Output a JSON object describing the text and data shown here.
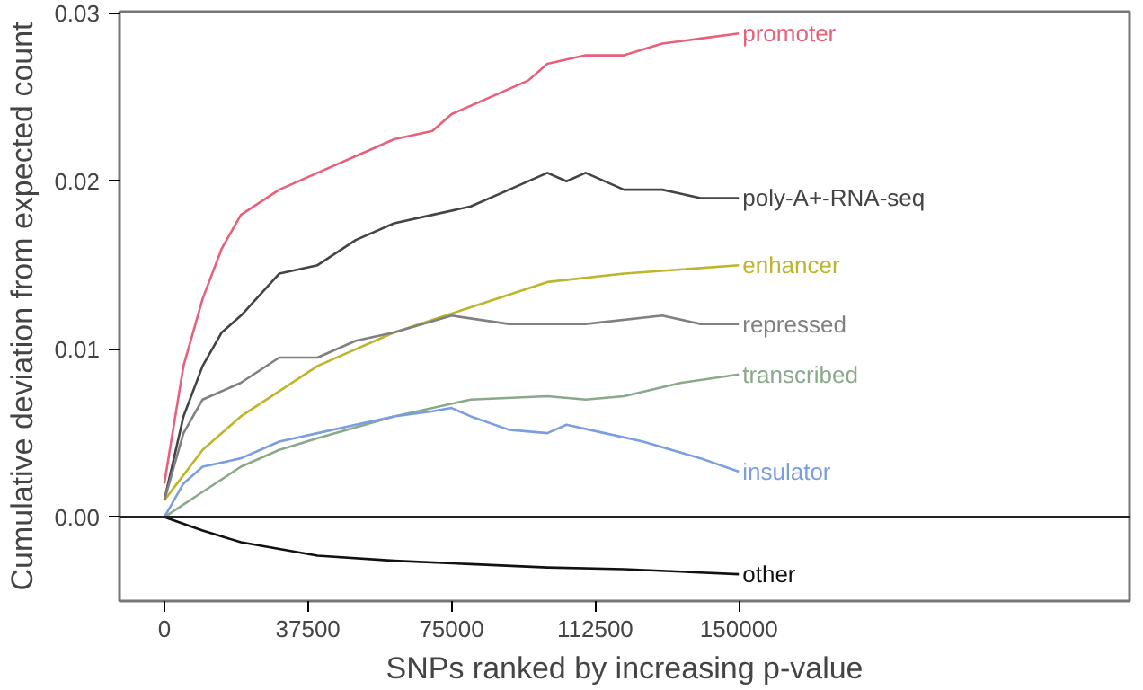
{
  "chart_data": {
    "type": "line",
    "xlabel": "SNPs ranked by increasing p-value",
    "ylabel": "Cumulative deviation from expected count",
    "xlim": [
      -11700,
      252000
    ],
    "ylim": [
      -0.005,
      0.0301
    ],
    "xticks": [
      0,
      37500,
      75000,
      112500,
      150000
    ],
    "yticks": [
      {
        "value": 0,
        "label": "0.00"
      },
      {
        "value": 0.01,
        "label": "0.01"
      },
      {
        "value": 0.02,
        "label": "0.02"
      },
      {
        "value": 0.03,
        "label": "0.03"
      }
    ],
    "grid": false,
    "line_style": "solid",
    "marker": "none",
    "ref_lines": [
      {
        "axis": "y",
        "value": 0,
        "label": null,
        "color": "#222222"
      }
    ],
    "series": [
      {
        "name": "promoter",
        "color": "#e8607a",
        "x": [
          0,
          5000,
          10000,
          15000,
          20000,
          30000,
          40000,
          50000,
          60000,
          70000,
          75000,
          85000,
          95000,
          100000,
          110000,
          120000,
          130000,
          140000,
          150000
        ],
        "values": [
          0.002,
          0.009,
          0.013,
          0.016,
          0.018,
          0.0195,
          0.0205,
          0.0215,
          0.0225,
          0.023,
          0.024,
          0.025,
          0.026,
          0.027,
          0.0275,
          0.0275,
          0.0282,
          0.0285,
          0.0288
        ]
      },
      {
        "name": "poly-A+-RNA-seq",
        "color": "#444444",
        "x": [
          0,
          5000,
          10000,
          15000,
          20000,
          30000,
          40000,
          50000,
          60000,
          70000,
          80000,
          90000,
          100000,
          105000,
          110000,
          120000,
          130000,
          140000,
          150000
        ],
        "values": [
          0.001,
          0.006,
          0.009,
          0.011,
          0.012,
          0.0145,
          0.015,
          0.0165,
          0.0175,
          0.018,
          0.0185,
          0.0195,
          0.0205,
          0.02,
          0.0205,
          0.0195,
          0.0195,
          0.019,
          0.019
        ]
      },
      {
        "name": "enhancer",
        "color": "#bdb52a",
        "x": [
          0,
          10000,
          20000,
          40000,
          60000,
          80000,
          100000,
          120000,
          150000
        ],
        "values": [
          0.001,
          0.004,
          0.006,
          0.009,
          0.011,
          0.0125,
          0.014,
          0.0145,
          0.015
        ]
      },
      {
        "name": "repressed",
        "color": "#808080",
        "x": [
          0,
          5000,
          10000,
          20000,
          30000,
          40000,
          50000,
          60000,
          75000,
          90000,
          100000,
          110000,
          130000,
          140000,
          150000
        ],
        "values": [
          0.001,
          0.005,
          0.007,
          0.008,
          0.0095,
          0.0095,
          0.0105,
          0.011,
          0.012,
          0.0115,
          0.0115,
          0.0115,
          0.012,
          0.0115,
          0.0115
        ]
      },
      {
        "name": "transcribed",
        "color": "#8aa88a",
        "x": [
          0,
          10000,
          20000,
          30000,
          40000,
          60000,
          80000,
          100000,
          110000,
          120000,
          135000,
          150000
        ],
        "values": [
          0,
          0.0015,
          0.003,
          0.004,
          0.0047,
          0.006,
          0.007,
          0.0072,
          0.007,
          0.0072,
          0.008,
          0.0085
        ]
      },
      {
        "name": "insulator",
        "color": "#7a9ee0",
        "x": [
          0,
          5000,
          10000,
          20000,
          30000,
          40000,
          50000,
          60000,
          70000,
          75000,
          80000,
          90000,
          100000,
          105000,
          115000,
          125000,
          140000,
          150000
        ],
        "values": [
          0,
          0.002,
          0.003,
          0.0035,
          0.0045,
          0.005,
          0.0055,
          0.006,
          0.0063,
          0.0065,
          0.006,
          0.0052,
          0.005,
          0.0055,
          0.005,
          0.0045,
          0.0035,
          0.0027
        ]
      },
      {
        "name": "other",
        "color": "#111111",
        "x": [
          0,
          10000,
          20000,
          40000,
          60000,
          80000,
          100000,
          120000,
          150000
        ],
        "values": [
          0,
          -0.0008,
          -0.0015,
          -0.0023,
          -0.0026,
          -0.0028,
          -0.003,
          -0.0031,
          -0.0034
        ]
      }
    ]
  }
}
